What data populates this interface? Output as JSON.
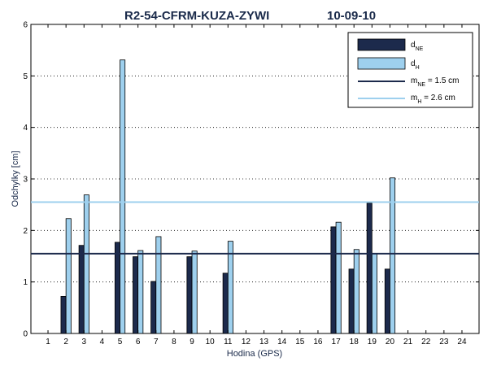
{
  "chart_data": {
    "type": "bar",
    "title": "R2-54-CFRM-KUZA-ZYWI",
    "date": "10-09-10",
    "xlabel": "Hodina (GPS)",
    "ylabel": "Odchylky [cm]",
    "ylim": [
      0,
      6
    ],
    "y_ticks": [
      "0",
      "1",
      "2",
      "3",
      "4",
      "5",
      "6"
    ],
    "categories": [
      "1",
      "2",
      "3",
      "4",
      "5",
      "6",
      "7",
      "8",
      "9",
      "10",
      "11",
      "12",
      "13",
      "14",
      "15",
      "16",
      "17",
      "18",
      "19",
      "20",
      "21",
      "22",
      "23",
      "24"
    ],
    "grid": "dotted horizontal",
    "legend_position": "top-right",
    "series": [
      {
        "name": "d_NE",
        "legend_main": "d",
        "legend_sub": "NE",
        "color": "#1c2a4c",
        "values": [
          null,
          0.72,
          1.71,
          null,
          1.77,
          1.49,
          1.01,
          null,
          1.49,
          null,
          1.17,
          null,
          null,
          null,
          null,
          null,
          2.07,
          1.25,
          2.53,
          1.25,
          null,
          null,
          null,
          null
        ]
      },
      {
        "name": "d_H",
        "legend_main": "d",
        "legend_sub": "H",
        "color": "#9ed0ee",
        "values": [
          null,
          2.23,
          2.69,
          null,
          5.31,
          1.61,
          1.88,
          null,
          1.6,
          null,
          1.79,
          null,
          null,
          null,
          null,
          null,
          2.16,
          1.63,
          1.55,
          3.02,
          null,
          null,
          null,
          null
        ]
      }
    ],
    "lines": [
      {
        "name": "m_NE",
        "legend_main": "m",
        "legend_sub": "NE",
        "legend_value": " = 1.5 cm",
        "value": 1.55,
        "color": "#1c2a4c"
      },
      {
        "name": "m_H",
        "legend_main": "m",
        "legend_sub": "H",
        "legend_value": " = 2.6 cm",
        "value": 2.55,
        "color": "#9ed0ee"
      }
    ]
  }
}
